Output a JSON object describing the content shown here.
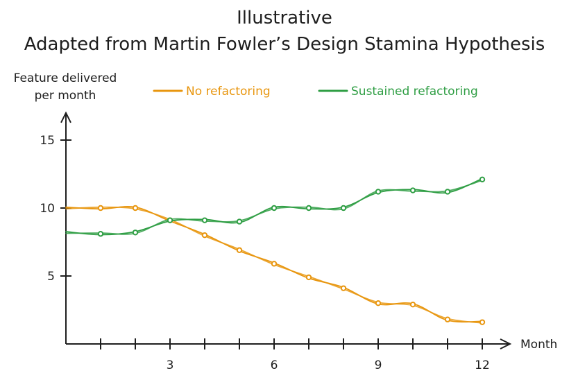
{
  "chart_data": {
    "type": "line",
    "title": "Illustrative",
    "subtitle": "Adapted from Martin Fowler’s Design Stamina Hypothesis",
    "ylabel_line1": "Feature delivered",
    "ylabel_line2": "per month",
    "xlabel": "Month",
    "x_ticks": [
      3,
      6,
      9,
      12
    ],
    "y_ticks": [
      5,
      10,
      15
    ],
    "xlim": [
      0,
      12.8
    ],
    "ylim": [
      0,
      17
    ],
    "x": [
      0,
      1,
      2,
      3,
      4,
      5,
      6,
      7,
      8,
      9,
      10,
      11,
      12
    ],
    "series": [
      {
        "name": "No refactoring",
        "color": "#e8960f",
        "values": [
          10,
          10,
          10,
          9.1,
          8.0,
          6.9,
          5.9,
          4.9,
          4.1,
          3.0,
          2.9,
          1.8,
          1.6
        ]
      },
      {
        "name": "Sustained refactoring",
        "color": "#2f9e44",
        "values": [
          8.2,
          8.1,
          8.2,
          9.1,
          9.1,
          9.0,
          10.0,
          10.0,
          10.0,
          11.2,
          11.3,
          11.2,
          12.1
        ]
      }
    ],
    "legend": "top"
  }
}
